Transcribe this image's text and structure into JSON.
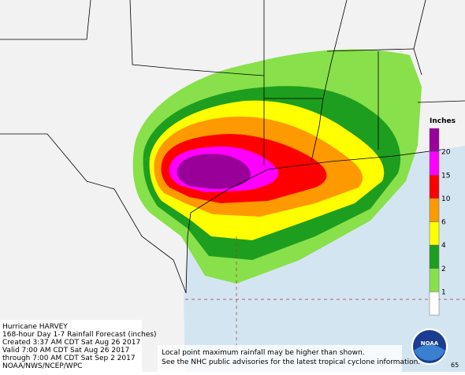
{
  "legend": {
    "title": "Inches",
    "labels": [
      "20",
      "15",
      "10",
      "6",
      "4",
      "2",
      "1"
    ],
    "colors": [
      "#990099",
      "#ff00ff",
      "#ff0000",
      "#ff9900",
      "#ffff00",
      "#1e9e1e",
      "#88e04a",
      "#ffffff"
    ]
  },
  "info": {
    "lines": [
      "Hurricane HARVEY",
      "168-hour Day 1-7 Rainfall Forecast (inches)",
      "Created 3:37 AM CDT Sat Aug 26 2017",
      "Valid 7:00 AM CDT Sat Aug 26 2017",
      "through 7:00 AM CDT Sat Sep 2 2017",
      "NOAA/NWS/NCEP/WPC"
    ]
  },
  "notes": [
    "Local point maximum rainfall may be higher than shown.",
    "See the NHC public advisories for the latest tropical cyclone information."
  ],
  "logo": "NOAA",
  "corner": "65"
}
